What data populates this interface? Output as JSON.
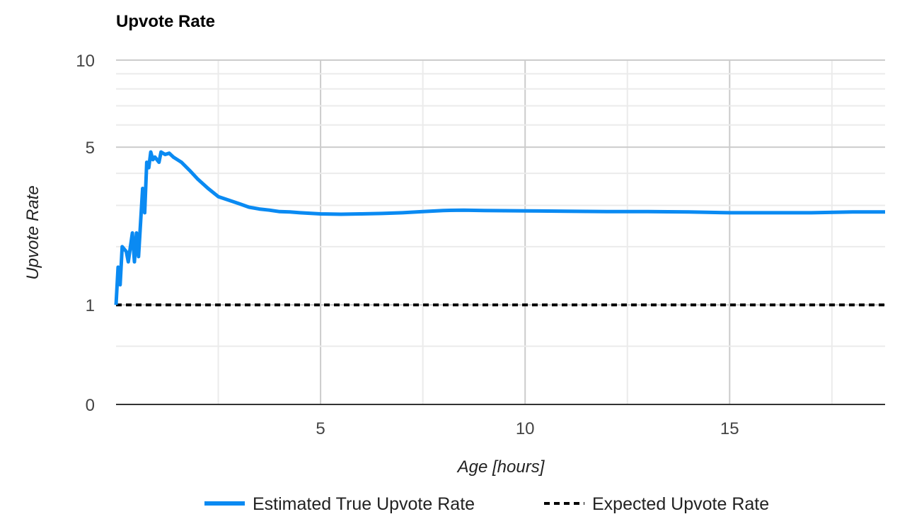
{
  "chart_data": {
    "type": "line",
    "title": "Upvote Rate",
    "xlabel": "Age [hours]",
    "ylabel": "Upvote Rate",
    "xlim": [
      0,
      18.8
    ],
    "ylim": [
      0,
      10
    ],
    "y_scale": "log1p",
    "x_ticks": [
      5,
      10,
      15
    ],
    "x_tick_labels": [
      "5",
      "10",
      "15"
    ],
    "y_ticks": [
      0,
      1,
      5,
      10
    ],
    "y_tick_labels": [
      "0",
      "1",
      "5",
      "10"
    ],
    "grid": true,
    "legend_position": "bottom",
    "series": [
      {
        "name": "Estimated True Upvote Rate",
        "color": "#0a8af2",
        "style": "solid",
        "x": [
          0.0,
          0.05,
          0.1,
          0.15,
          0.25,
          0.3,
          0.4,
          0.45,
          0.5,
          0.55,
          0.65,
          0.7,
          0.75,
          0.8,
          0.85,
          0.9,
          0.95,
          1.05,
          1.1,
          1.2,
          1.3,
          1.4,
          1.5,
          1.6,
          1.8,
          2.0,
          2.25,
          2.5,
          2.75,
          3.0,
          3.25,
          3.5,
          3.75,
          4.0,
          4.25,
          4.5,
          5.0,
          5.5,
          6.0,
          6.5,
          7.0,
          7.5,
          8.0,
          8.5,
          9.0,
          10.0,
          11.0,
          12.0,
          13.0,
          14.0,
          15.0,
          16.0,
          17.0,
          18.0,
          18.8
        ],
        "y": [
          1.0,
          1.6,
          1.3,
          2.0,
          1.9,
          1.7,
          2.3,
          1.7,
          2.3,
          1.8,
          3.5,
          2.8,
          4.4,
          4.2,
          4.8,
          4.5,
          4.6,
          4.4,
          4.8,
          4.7,
          4.75,
          4.6,
          4.5,
          4.4,
          4.1,
          3.8,
          3.5,
          3.25,
          3.15,
          3.05,
          2.95,
          2.9,
          2.87,
          2.83,
          2.82,
          2.8,
          2.77,
          2.76,
          2.77,
          2.78,
          2.8,
          2.83,
          2.86,
          2.87,
          2.86,
          2.85,
          2.84,
          2.83,
          2.83,
          2.82,
          2.8,
          2.8,
          2.8,
          2.82,
          2.82
        ]
      },
      {
        "name": "Expected Upvote Rate",
        "color": "#000000",
        "style": "dashed",
        "x": [
          0,
          18.8
        ],
        "y": [
          1,
          1
        ]
      }
    ]
  }
}
